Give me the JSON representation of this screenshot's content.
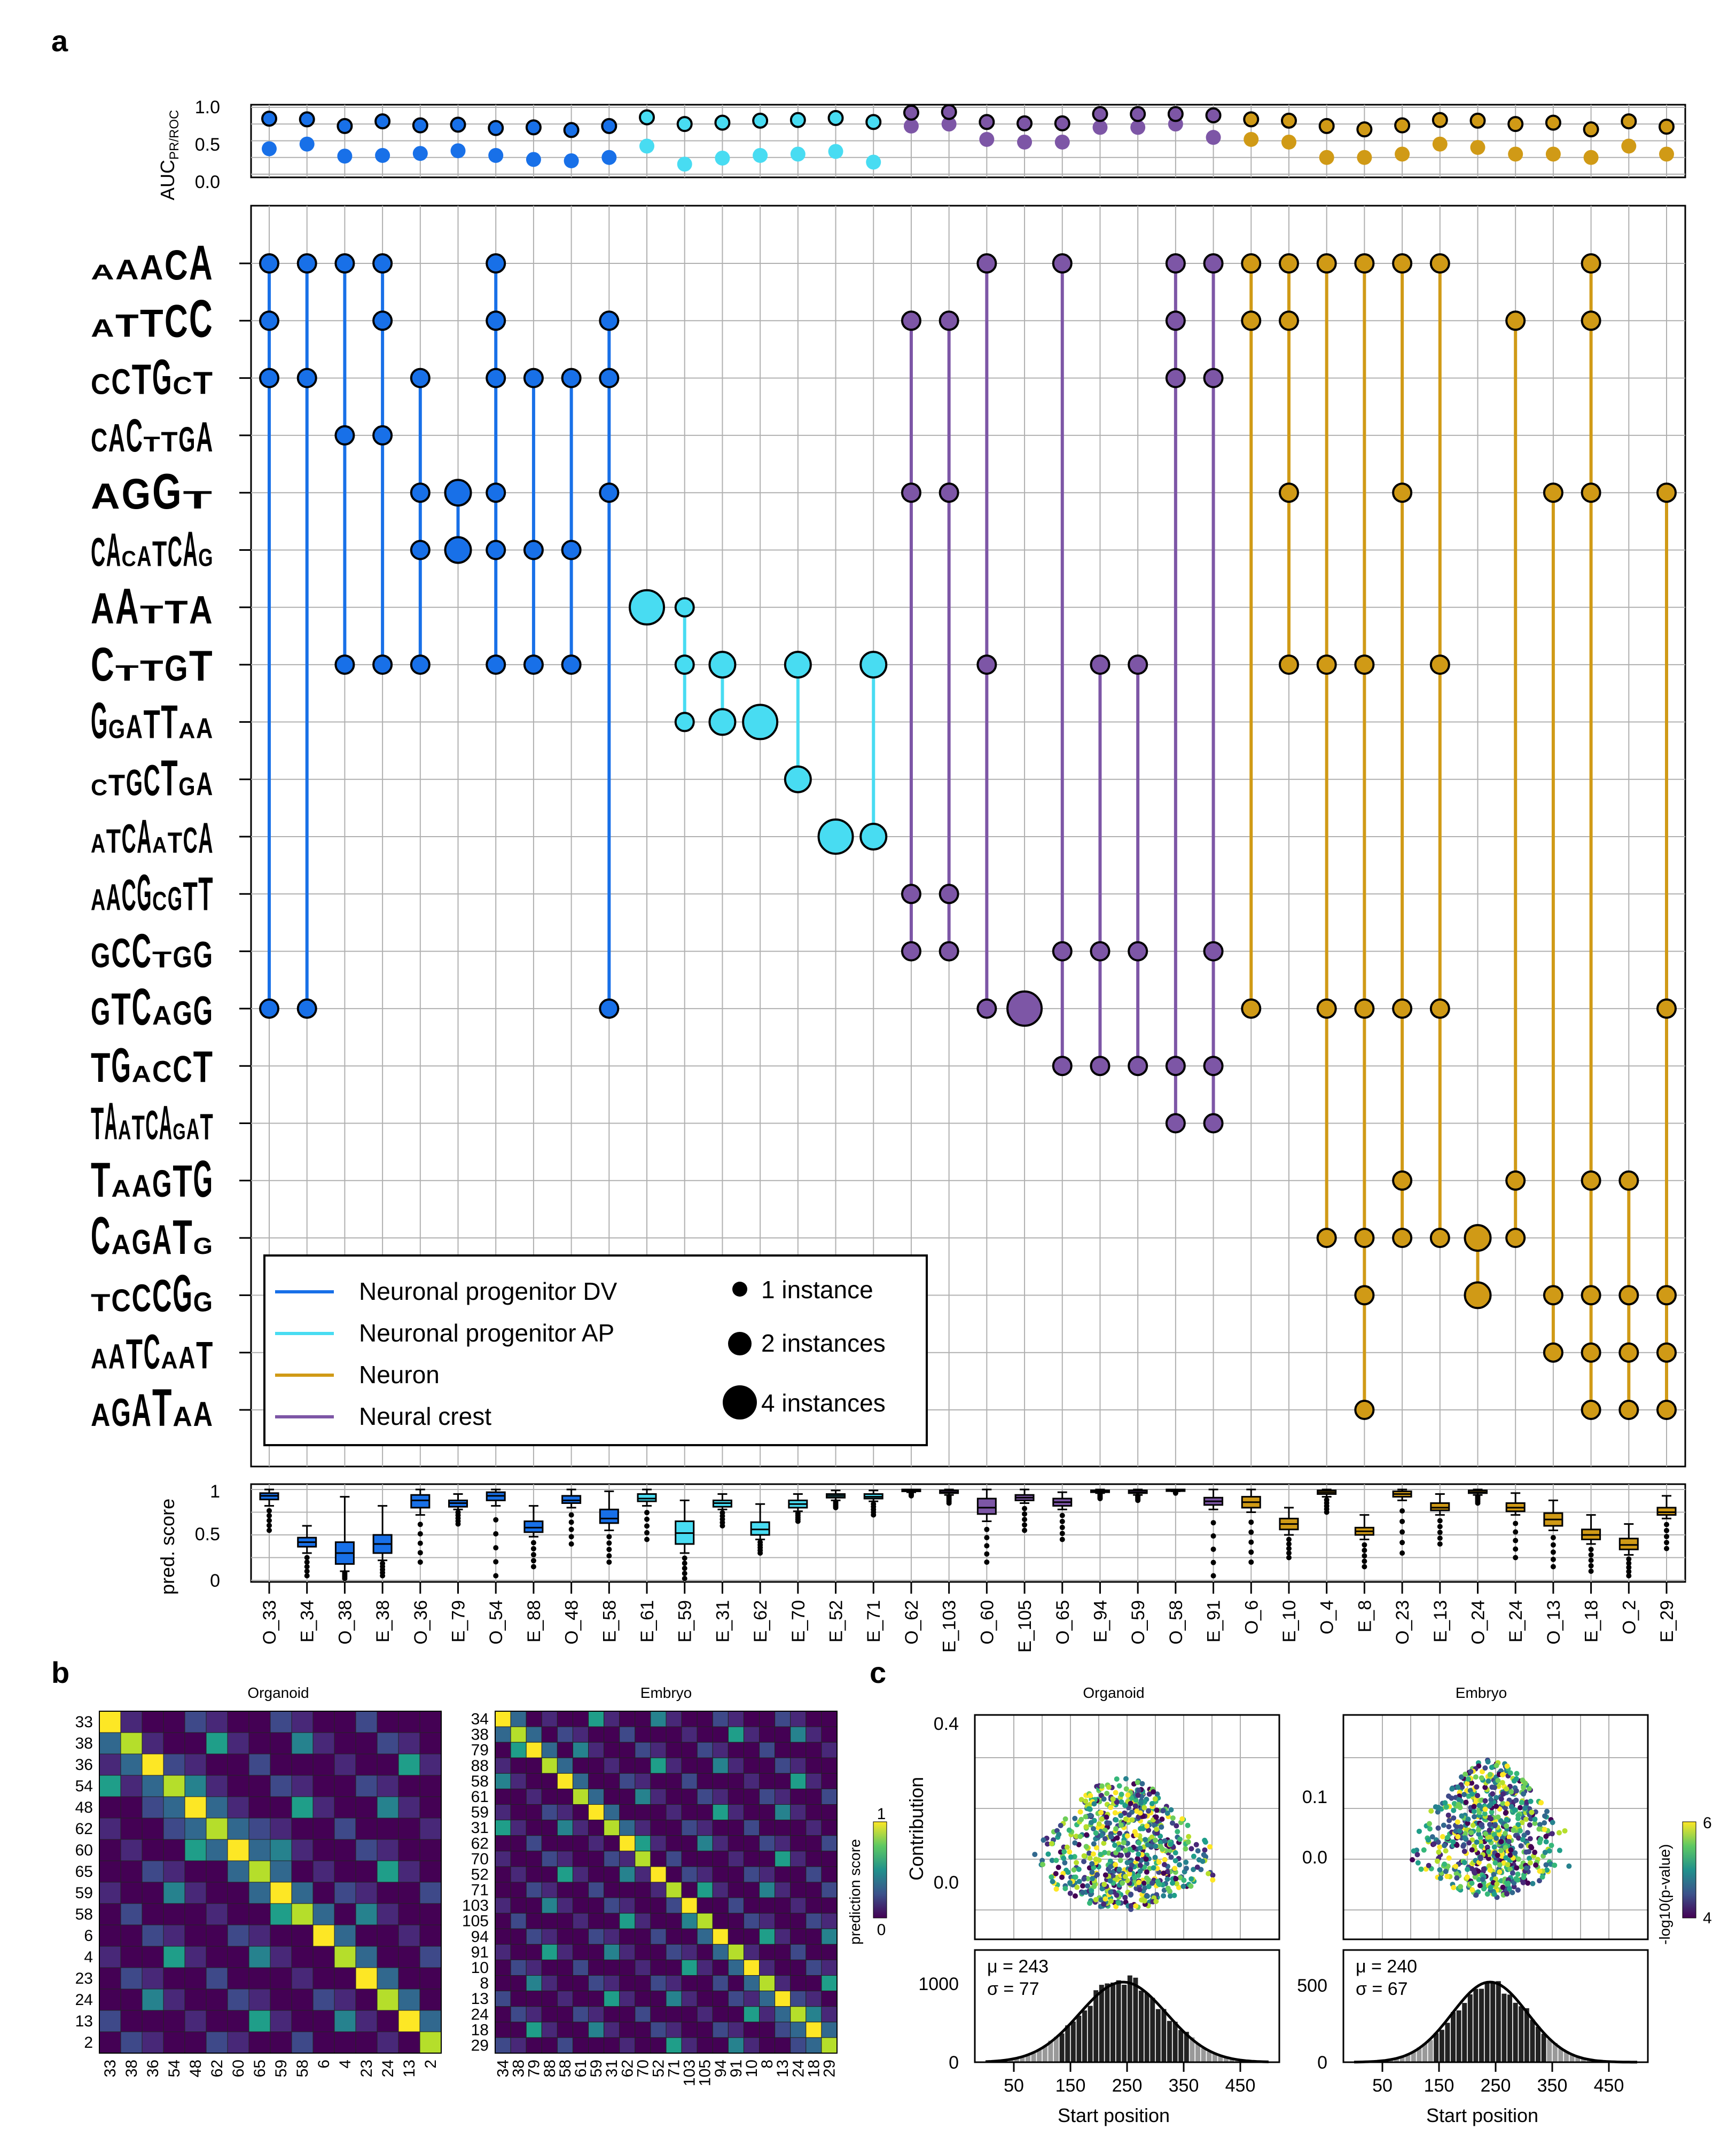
{
  "panels": {
    "a": "a",
    "b": "b",
    "c": "c"
  },
  "colors": {
    "Neuronal progenitor DV": "#1870e8",
    "Neuronal progenitor AP": "#48dcf2",
    "Neuron": "#d09a16",
    "Neural crest": "#7d56a6"
  },
  "chart_data": [
    {
      "id": "a-top",
      "type": "scatter",
      "title": "",
      "ylabel": "AUC",
      "ylabel_subscript": "PR/ROC",
      "ylim": [
        0,
        1
      ],
      "yticks": [
        "0.0",
        "0.5",
        "1.0"
      ],
      "grid": true,
      "categories": [
        "O_33",
        "E_34",
        "O_38",
        "E_38",
        "O_36",
        "E_79",
        "O_54",
        "E_88",
        "O_48",
        "E_58",
        "E_61",
        "E_59",
        "E_31",
        "E_62",
        "E_70",
        "E_52",
        "E_71",
        "O_62",
        "E_103",
        "O_60",
        "E_105",
        "O_65",
        "E_94",
        "O_59",
        "O_58",
        "E_91",
        "O_6",
        "E_10",
        "O_4",
        "E_8",
        "O_23",
        "E_13",
        "O_24",
        "E_24",
        "O_13",
        "E_18",
        "O_2",
        "E_29"
      ],
      "group": [
        "DV",
        "DV",
        "DV",
        "DV",
        "DV",
        "DV",
        "DV",
        "DV",
        "DV",
        "DV",
        "AP",
        "AP",
        "AP",
        "AP",
        "AP",
        "AP",
        "AP",
        "NC",
        "NC",
        "NC",
        "NC",
        "NC",
        "NC",
        "NC",
        "NC",
        "NC",
        "N",
        "N",
        "N",
        "N",
        "N",
        "N",
        "N",
        "N",
        "N",
        "N",
        "N",
        "N"
      ],
      "series": [
        {
          "name": "AUC PR",
          "values": [
            0.38,
            0.45,
            0.27,
            0.28,
            0.31,
            0.35,
            0.28,
            0.22,
            0.2,
            0.25,
            0.42,
            0.15,
            0.24,
            0.28,
            0.3,
            0.34,
            0.18,
            0.72,
            0.75,
            0.52,
            0.48,
            0.48,
            0.7,
            0.7,
            0.75,
            0.55,
            0.52,
            0.48,
            0.25,
            0.25,
            0.3,
            0.45,
            0.4,
            0.3,
            0.3,
            0.25,
            0.42,
            0.3
          ]
        },
        {
          "name": "AUC ROC",
          "values": [
            0.83,
            0.82,
            0.72,
            0.79,
            0.73,
            0.74,
            0.69,
            0.7,
            0.66,
            0.72,
            0.85,
            0.75,
            0.77,
            0.8,
            0.81,
            0.84,
            0.78,
            0.92,
            0.93,
            0.78,
            0.76,
            0.76,
            0.9,
            0.9,
            0.9,
            0.88,
            0.82,
            0.8,
            0.72,
            0.67,
            0.73,
            0.81,
            0.8,
            0.75,
            0.77,
            0.67,
            0.79,
            0.71
          ]
        }
      ]
    },
    {
      "id": "a-main",
      "type": "scatter",
      "title": "",
      "logo_count": 21,
      "legend": {
        "placement": "bottom-left",
        "series": [
          "Neuronal progenitor DV",
          "Neuronal progenitor AP",
          "Neuron",
          "Neural crest"
        ],
        "sizes": [
          "1 instance",
          "2 instances",
          "4 instances"
        ]
      },
      "points": [
        [
          0,
          0,
          1
        ],
        [
          0,
          1,
          1
        ],
        [
          0,
          2,
          1
        ],
        [
          0,
          13,
          1
        ],
        [
          1,
          0,
          1
        ],
        [
          1,
          2,
          1
        ],
        [
          1,
          13,
          1
        ],
        [
          2,
          0,
          1
        ],
        [
          2,
          3,
          1
        ],
        [
          2,
          7,
          1
        ],
        [
          3,
          0,
          1
        ],
        [
          3,
          1,
          1
        ],
        [
          3,
          3,
          1
        ],
        [
          3,
          7,
          1
        ],
        [
          4,
          2,
          1
        ],
        [
          4,
          4,
          1
        ],
        [
          4,
          5,
          1
        ],
        [
          4,
          7,
          1
        ],
        [
          5,
          4,
          2
        ],
        [
          5,
          5,
          2
        ],
        [
          6,
          0,
          1
        ],
        [
          6,
          1,
          1
        ],
        [
          6,
          2,
          1
        ],
        [
          6,
          4,
          1
        ],
        [
          6,
          5,
          1
        ],
        [
          6,
          7,
          1
        ],
        [
          7,
          2,
          1
        ],
        [
          7,
          5,
          1
        ],
        [
          7,
          7,
          1
        ],
        [
          8,
          2,
          1
        ],
        [
          8,
          5,
          1
        ],
        [
          8,
          7,
          1
        ],
        [
          9,
          1,
          1
        ],
        [
          9,
          2,
          1
        ],
        [
          9,
          4,
          1
        ],
        [
          9,
          13,
          1
        ],
        [
          10,
          6,
          4
        ],
        [
          11,
          6,
          1
        ],
        [
          11,
          7,
          1
        ],
        [
          11,
          8,
          1
        ],
        [
          12,
          7,
          2
        ],
        [
          12,
          8,
          2
        ],
        [
          13,
          8,
          4
        ],
        [
          14,
          7,
          2
        ],
        [
          14,
          9,
          2
        ],
        [
          15,
          10,
          4
        ],
        [
          16,
          7,
          2
        ],
        [
          16,
          10,
          2
        ],
        [
          17,
          1,
          1
        ],
        [
          17,
          4,
          1
        ],
        [
          17,
          11,
          1
        ],
        [
          17,
          12,
          1
        ],
        [
          18,
          1,
          1
        ],
        [
          18,
          4,
          1
        ],
        [
          18,
          11,
          1
        ],
        [
          18,
          12,
          1
        ],
        [
          19,
          0,
          1
        ],
        [
          19,
          7,
          1
        ],
        [
          19,
          13,
          1
        ],
        [
          20,
          13,
          4
        ],
        [
          21,
          0,
          1
        ],
        [
          21,
          12,
          1
        ],
        [
          21,
          14,
          1
        ],
        [
          22,
          7,
          1
        ],
        [
          22,
          12,
          1
        ],
        [
          22,
          14,
          1
        ],
        [
          23,
          7,
          1
        ],
        [
          23,
          12,
          1
        ],
        [
          23,
          14,
          1
        ],
        [
          24,
          0,
          1
        ],
        [
          24,
          1,
          1
        ],
        [
          24,
          2,
          1
        ],
        [
          24,
          14,
          1
        ],
        [
          24,
          15,
          1
        ],
        [
          25,
          0,
          1
        ],
        [
          25,
          2,
          1
        ],
        [
          25,
          12,
          1
        ],
        [
          25,
          14,
          1
        ],
        [
          25,
          15,
          1
        ],
        [
          26,
          0,
          1
        ],
        [
          26,
          1,
          1
        ],
        [
          26,
          13,
          1
        ],
        [
          27,
          0,
          1
        ],
        [
          27,
          1,
          1
        ],
        [
          27,
          4,
          1
        ],
        [
          27,
          7,
          1
        ],
        [
          28,
          0,
          1
        ],
        [
          28,
          7,
          1
        ],
        [
          28,
          13,
          1
        ],
        [
          28,
          17,
          1
        ],
        [
          29,
          0,
          1
        ],
        [
          29,
          7,
          1
        ],
        [
          29,
          13,
          1
        ],
        [
          29,
          17,
          1
        ],
        [
          29,
          18,
          1
        ],
        [
          29,
          20,
          1
        ],
        [
          30,
          0,
          1
        ],
        [
          30,
          4,
          1
        ],
        [
          30,
          13,
          1
        ],
        [
          30,
          16,
          1
        ],
        [
          30,
          17,
          1
        ],
        [
          31,
          0,
          1
        ],
        [
          31,
          7,
          1
        ],
        [
          31,
          13,
          1
        ],
        [
          31,
          17,
          1
        ],
        [
          32,
          17,
          2
        ],
        [
          32,
          18,
          2
        ],
        [
          33,
          1,
          1
        ],
        [
          33,
          16,
          1
        ],
        [
          33,
          17,
          1
        ],
        [
          34,
          4,
          1
        ],
        [
          34,
          18,
          1
        ],
        [
          34,
          19,
          1
        ],
        [
          35,
          0,
          1
        ],
        [
          35,
          1,
          1
        ],
        [
          35,
          4,
          1
        ],
        [
          35,
          16,
          1
        ],
        [
          35,
          18,
          1
        ],
        [
          35,
          19,
          1
        ],
        [
          35,
          20,
          1
        ],
        [
          36,
          16,
          1
        ],
        [
          36,
          18,
          1
        ],
        [
          36,
          19,
          1
        ],
        [
          36,
          20,
          1
        ],
        [
          37,
          4,
          1
        ],
        [
          37,
          13,
          1
        ],
        [
          37,
          18,
          1
        ],
        [
          37,
          19,
          1
        ],
        [
          37,
          20,
          1
        ]
      ]
    },
    {
      "id": "a-bottom",
      "type": "box",
      "ylabel": "pred. score",
      "ylim": [
        0,
        1
      ],
      "yticks": [
        "0",
        "0.5",
        "1"
      ],
      "grid": true,
      "boxes": [
        [
          0.82,
          0.89,
          0.93,
          0.96,
          1.0,
          0.55
        ],
        [
          0.3,
          0.37,
          0.42,
          0.47,
          0.6,
          0.05
        ],
        [
          0.1,
          0.18,
          0.3,
          0.42,
          0.92,
          0.02
        ],
        [
          0.22,
          0.3,
          0.4,
          0.5,
          0.82,
          0.05
        ],
        [
          0.72,
          0.8,
          0.88,
          0.94,
          1.0,
          0.2
        ],
        [
          0.78,
          0.81,
          0.85,
          0.88,
          0.95,
          0.62
        ],
        [
          0.82,
          0.88,
          0.93,
          0.97,
          1.0,
          0.05
        ],
        [
          0.48,
          0.53,
          0.58,
          0.65,
          0.82,
          0.15
        ],
        [
          0.8,
          0.85,
          0.88,
          0.93,
          1.0,
          0.4
        ],
        [
          0.55,
          0.63,
          0.68,
          0.78,
          0.98,
          0.2
        ],
        [
          0.82,
          0.87,
          0.9,
          0.95,
          1.0,
          0.45
        ],
        [
          0.3,
          0.4,
          0.52,
          0.65,
          0.88,
          0.02
        ],
        [
          0.78,
          0.81,
          0.85,
          0.88,
          0.95,
          0.6
        ],
        [
          0.45,
          0.5,
          0.56,
          0.64,
          0.84,
          0.3
        ],
        [
          0.76,
          0.8,
          0.84,
          0.88,
          0.95,
          0.65
        ],
        [
          0.88,
          0.91,
          0.93,
          0.95,
          0.99,
          0.8
        ],
        [
          0.87,
          0.9,
          0.92,
          0.95,
          0.99,
          0.72
        ],
        [
          0.97,
          0.98,
          0.99,
          1.0,
          1.0,
          0.93
        ],
        [
          0.94,
          0.96,
          0.97,
          0.99,
          1.0,
          0.85
        ],
        [
          0.65,
          0.73,
          0.8,
          0.9,
          1.0,
          0.2
        ],
        [
          0.85,
          0.88,
          0.91,
          0.94,
          1.0,
          0.55
        ],
        [
          0.78,
          0.82,
          0.86,
          0.9,
          0.97,
          0.45
        ],
        [
          0.96,
          0.97,
          0.98,
          0.99,
          1.0,
          0.9
        ],
        [
          0.94,
          0.96,
          0.97,
          0.99,
          1.0,
          0.88
        ],
        [
          0.98,
          0.99,
          0.99,
          1.0,
          1.0,
          0.96
        ],
        [
          0.78,
          0.83,
          0.87,
          0.91,
          1.0,
          0.05
        ],
        [
          0.75,
          0.8,
          0.86,
          0.92,
          1.0,
          0.2
        ],
        [
          0.5,
          0.56,
          0.62,
          0.68,
          0.8,
          0.25
        ],
        [
          0.92,
          0.95,
          0.97,
          0.99,
          1.0,
          0.75
        ],
        [
          0.45,
          0.5,
          0.54,
          0.58,
          0.72,
          0.15
        ],
        [
          0.88,
          0.92,
          0.95,
          0.98,
          1.0,
          0.3
        ],
        [
          0.72,
          0.77,
          0.8,
          0.85,
          0.95,
          0.4
        ],
        [
          0.94,
          0.96,
          0.97,
          0.99,
          1.0,
          0.85
        ],
        [
          0.72,
          0.76,
          0.8,
          0.85,
          0.96,
          0.25
        ],
        [
          0.55,
          0.6,
          0.67,
          0.74,
          0.88,
          0.15
        ],
        [
          0.4,
          0.45,
          0.5,
          0.56,
          0.72,
          0.1
        ],
        [
          0.28,
          0.34,
          0.39,
          0.46,
          0.62,
          0.05
        ],
        [
          0.68,
          0.72,
          0.75,
          0.8,
          0.93,
          0.35
        ]
      ]
    },
    {
      "id": "b-organoid",
      "type": "heatmap",
      "title": "Organoid",
      "rows": [
        "33",
        "38",
        "36",
        "54",
        "48",
        "62",
        "60",
        "65",
        "59",
        "58",
        "6",
        "4",
        "23",
        "24",
        "13",
        "2"
      ],
      "cols": [
        "33",
        "38",
        "36",
        "54",
        "48",
        "62",
        "60",
        "65",
        "59",
        "58",
        "6",
        "4",
        "23",
        "24",
        "13",
        "2"
      ]
    },
    {
      "id": "b-embryo",
      "type": "heatmap",
      "title": "Embryo",
      "rows": [
        "34",
        "38",
        "79",
        "88",
        "58",
        "61",
        "59",
        "31",
        "62",
        "70",
        "52",
        "71",
        "103",
        "105",
        "94",
        "91",
        "10",
        "8",
        "13",
        "24",
        "18",
        "29"
      ],
      "cols": [
        "34",
        "38",
        "79",
        "88",
        "58",
        "61",
        "59",
        "31",
        "62",
        "70",
        "52",
        "71",
        "103",
        "105",
        "94",
        "91",
        "10",
        "8",
        "13",
        "24",
        "18",
        "29"
      ],
      "colorbar": {
        "label": "prediction score",
        "min": "0",
        "max": "1"
      }
    },
    {
      "id": "c-organoid",
      "type": "scatter",
      "title": "Organoid",
      "ylabel": "Contribution",
      "yticks": [
        "0.0",
        "0.4"
      ],
      "xlabel": "Start position",
      "xticks": [
        "50",
        "150",
        "250",
        "350",
        "450"
      ],
      "hist": {
        "mu": "μ = 243",
        "sigma": "σ = 77",
        "yticks": [
          "0",
          "1000"
        ]
      }
    },
    {
      "id": "c-embryo",
      "type": "scatter",
      "title": "Embryo",
      "yticks": [
        "0.0",
        "0.1"
      ],
      "xlabel": "Start position",
      "xticks": [
        "50",
        "150",
        "250",
        "350",
        "450"
      ],
      "colorbar": {
        "label": "-log10(p-value)",
        "min": "4",
        "max": "6"
      },
      "hist": {
        "mu": "μ = 240",
        "sigma": "σ = 67",
        "yticks": [
          "0",
          "500"
        ]
      }
    }
  ]
}
